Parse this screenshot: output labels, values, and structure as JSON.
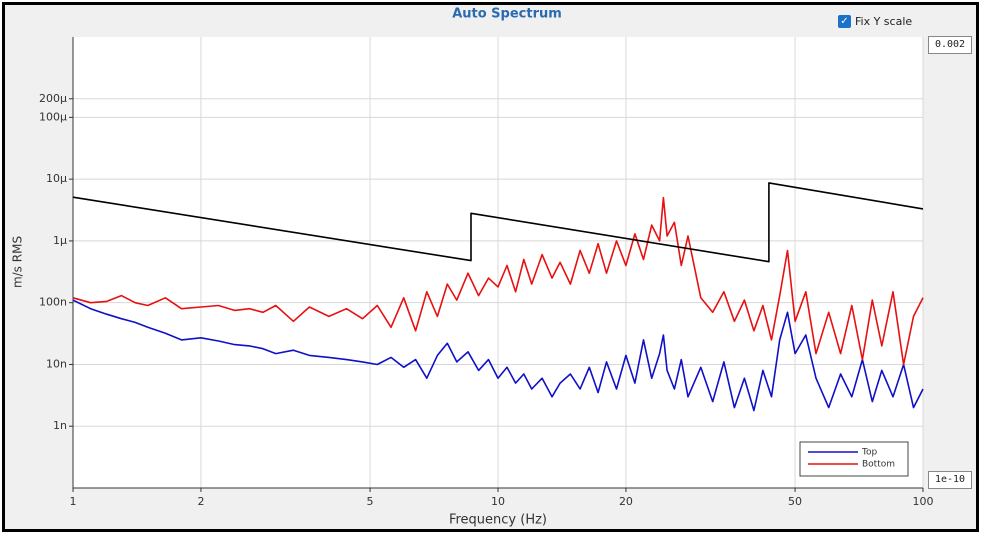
{
  "chart_data": {
    "type": "line",
    "title": "Auto Spectrum",
    "xlabel": "Frequency (Hz)",
    "ylabel": "m/s RMS",
    "xscale": "log",
    "yscale": "log",
    "grid": true,
    "legend": "lower right",
    "fix_y_scale_label": "Fix Y scale",
    "fix_y_scale": true,
    "xlim": [
      1,
      100
    ],
    "xticks": [
      1,
      2,
      5,
      10,
      20,
      50,
      100
    ],
    "ylim": [
      1e-10,
      0.002
    ],
    "yticks": [
      {
        "value": 0.0002,
        "label": "200μ"
      },
      {
        "value": 0.0001,
        "label": "100μ"
      },
      {
        "value": 1e-05,
        "label": "10μ"
      },
      {
        "value": 1e-06,
        "label": "1μ"
      },
      {
        "value": 1e-07,
        "label": "100n"
      },
      {
        "value": 1e-08,
        "label": "10n"
      },
      {
        "value": 1e-09,
        "label": "1n"
      }
    ],
    "series": [
      {
        "name": "Top",
        "color": "#1010c8",
        "x": [
          1,
          1.1,
          1.2,
          1.3,
          1.4,
          1.5,
          1.65,
          1.8,
          2,
          2.2,
          2.4,
          2.6,
          2.8,
          3,
          3.3,
          3.6,
          4,
          4.4,
          4.8,
          5.2,
          5.6,
          6,
          6.4,
          6.8,
          7.2,
          7.6,
          8,
          8.5,
          9,
          9.5,
          10,
          10.5,
          11,
          11.5,
          12,
          12.7,
          13.4,
          14,
          14.8,
          15.6,
          16.4,
          17.2,
          18,
          19,
          20,
          21,
          22,
          23,
          24,
          24.5,
          25,
          26,
          27,
          28,
          30,
          32,
          34,
          36,
          38,
          40,
          42,
          44,
          46,
          48,
          50,
          53,
          56,
          60,
          64,
          68,
          72,
          76,
          80,
          85,
          90,
          95,
          100
        ],
        "values": [
          1.1e-07,
          8e-08,
          6.5e-08,
          5.5e-08,
          4.8e-08,
          4e-08,
          3.2e-08,
          2.5e-08,
          2.7e-08,
          2.4e-08,
          2.1e-08,
          2e-08,
          1.8e-08,
          1.5e-08,
          1.7e-08,
          1.4e-08,
          1.3e-08,
          1.2e-08,
          1.1e-08,
          1e-08,
          1.3e-08,
          9e-09,
          1.2e-08,
          6e-09,
          1.4e-08,
          2.2e-08,
          1.1e-08,
          1.6e-08,
          8e-09,
          1.2e-08,
          6e-09,
          9e-09,
          5e-09,
          7e-09,
          4e-09,
          6e-09,
          3e-09,
          5e-09,
          7e-09,
          4e-09,
          9e-09,
          3.5e-09,
          1.1e-08,
          4e-09,
          1.4e-08,
          5e-09,
          2.5e-08,
          6e-09,
          1.5e-08,
          3e-08,
          8e-09,
          4e-09,
          1.2e-08,
          3e-09,
          9e-09,
          2.5e-09,
          1.1e-08,
          2e-09,
          6e-09,
          1.8e-09,
          8e-09,
          3e-09,
          2.5e-08,
          7e-08,
          1.5e-08,
          3e-08,
          6e-09,
          2e-09,
          7e-09,
          3e-09,
          1.2e-08,
          2.5e-09,
          8e-09,
          3e-09,
          1e-08,
          2e-09,
          4e-09
        ]
      },
      {
        "name": "Bottom",
        "color": "#e81010",
        "x": [
          1,
          1.1,
          1.2,
          1.3,
          1.4,
          1.5,
          1.65,
          1.8,
          2,
          2.2,
          2.4,
          2.6,
          2.8,
          3,
          3.3,
          3.6,
          4,
          4.4,
          4.8,
          5.2,
          5.6,
          6,
          6.4,
          6.8,
          7.2,
          7.6,
          8,
          8.5,
          9,
          9.5,
          10,
          10.5,
          11,
          11.5,
          12,
          12.7,
          13.4,
          14,
          14.8,
          15.6,
          16.4,
          17.2,
          18,
          19,
          20,
          21,
          22,
          23,
          24,
          24.5,
          25,
          26,
          27,
          28,
          30,
          32,
          34,
          36,
          38,
          40,
          42,
          44,
          46,
          48,
          50,
          53,
          56,
          60,
          64,
          68,
          72,
          76,
          80,
          85,
          90,
          95,
          100
        ],
        "values": [
          1.2e-07,
          1e-07,
          1.05e-07,
          1.3e-07,
          1e-07,
          9e-08,
          1.2e-07,
          8e-08,
          8.5e-08,
          9e-08,
          7.5e-08,
          8e-08,
          7e-08,
          9e-08,
          5e-08,
          8.5e-08,
          6e-08,
          8e-08,
          5.5e-08,
          9e-08,
          4e-08,
          1.2e-07,
          3.5e-08,
          1.5e-07,
          6e-08,
          2e-07,
          1.1e-07,
          3e-07,
          1.3e-07,
          2.5e-07,
          1.8e-07,
          4e-07,
          1.5e-07,
          5e-07,
          2e-07,
          6e-07,
          2.5e-07,
          4.5e-07,
          2e-07,
          7e-07,
          3e-07,
          9e-07,
          3e-07,
          1e-06,
          4e-07,
          1.3e-06,
          5e-07,
          1.8e-06,
          1e-06,
          5e-06,
          1.2e-06,
          2e-06,
          4e-07,
          1.2e-06,
          1.2e-07,
          7e-08,
          1.5e-07,
          5e-08,
          1.1e-07,
          3.5e-08,
          9e-08,
          2.5e-08,
          1.3e-07,
          7e-07,
          5e-08,
          1.5e-07,
          1.5e-08,
          7e-08,
          1.5e-08,
          9e-08,
          1.2e-08,
          1.1e-07,
          2e-08,
          1.5e-07,
          1e-08,
          6e-08,
          1.2e-07
        ]
      },
      {
        "color": "#000000",
        "x": [
          1,
          8.64,
          8.64,
          43.4,
          43.4,
          100
        ],
        "values": [
          5.1e-06,
          4.8e-07,
          2.8e-06,
          4.6e-07,
          8.7e-06,
          3.3e-06
        ]
      }
    ]
  }
}
